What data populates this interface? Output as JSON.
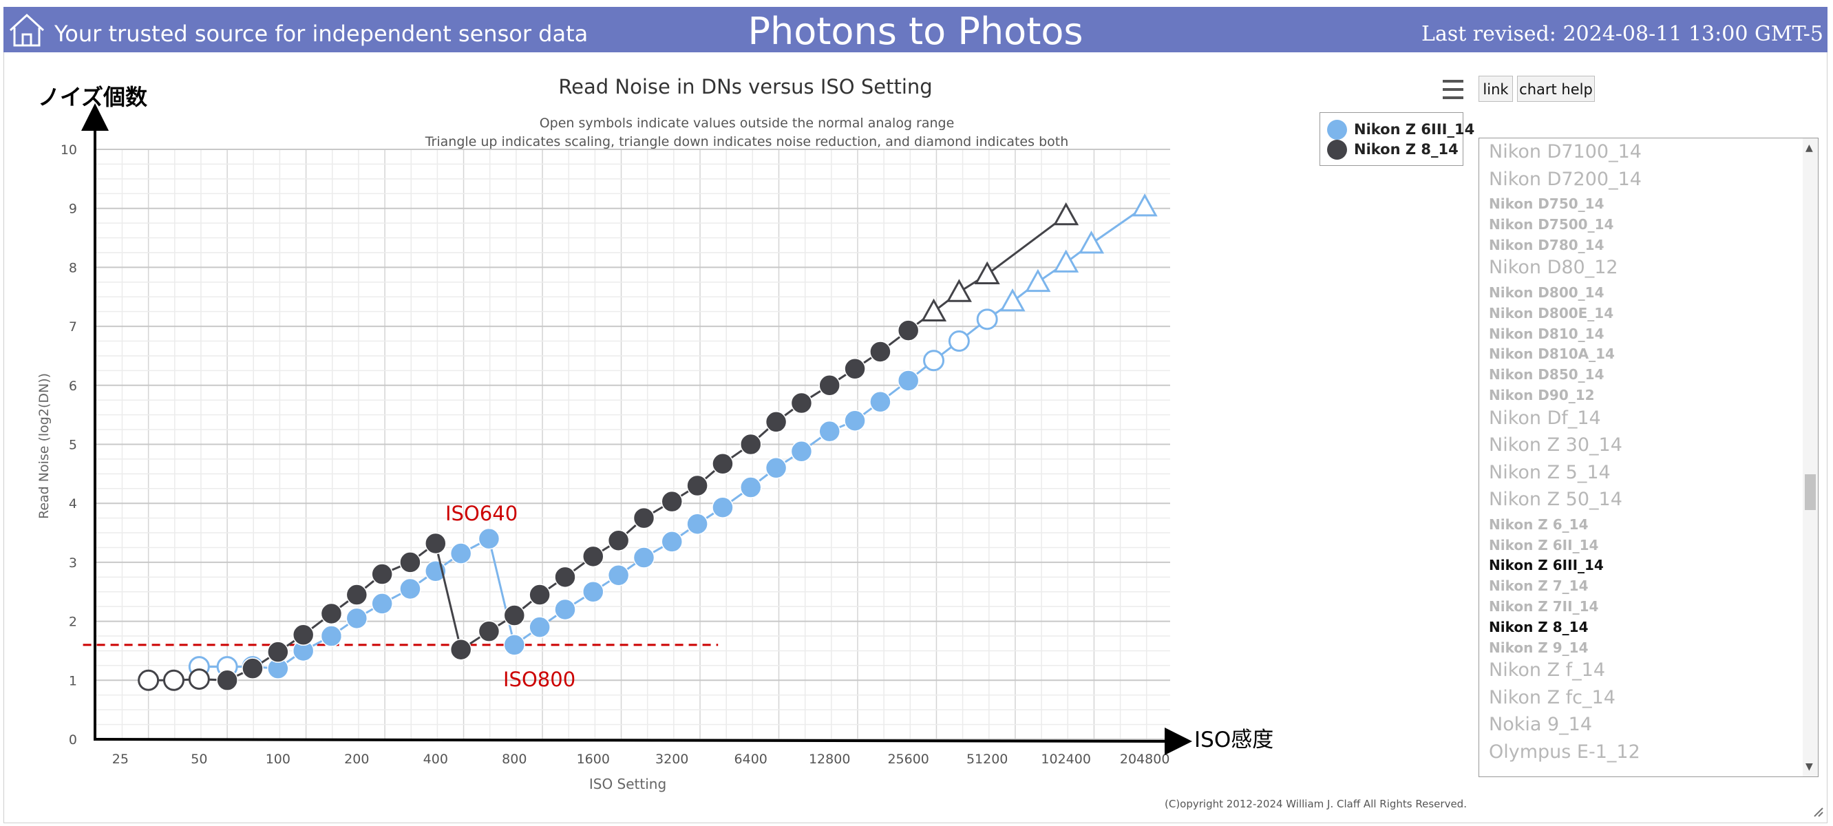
{
  "header": {
    "tagline": "Your trusted source for independent sensor data",
    "site_title": "Photons to Photos",
    "last_revised": "Last revised: 2024-08-11 13:00 GMT-5"
  },
  "toolbar": {
    "link_label": "link",
    "help_label": "chart help"
  },
  "colors": {
    "header_bg": "#6a78c1",
    "series_6iii": "#7cb5ec",
    "series_8": "#434348",
    "annotation": "#cc0000"
  },
  "annotations": {
    "y_axis_jp": "ノイズ個数",
    "x_axis_jp": "ISO感度",
    "iso640": "ISO640",
    "iso800": "ISO800",
    "threshold_y": 1.6,
    "threshold_x_range": [
      18,
      4800
    ]
  },
  "chart_data": {
    "type": "scatter",
    "title": "Read Noise in DNs versus ISO Setting",
    "subtitle": [
      "Open symbols indicate values outside the normal analog range",
      "Triangle up indicates scaling, triangle down indicates noise reduction, and diamond indicates both"
    ],
    "xlabel": "ISO Setting",
    "ylabel": "Read Noise (log2(DN))",
    "x_scale": "log2",
    "xlim": [
      20,
      256000
    ],
    "ylim": [
      0,
      10
    ],
    "x_ticks": [
      25,
      50,
      100,
      200,
      400,
      800,
      1600,
      3200,
      6400,
      12800,
      25600,
      51200,
      102400,
      204800
    ],
    "y_ticks": [
      0,
      1,
      2,
      3,
      4,
      5,
      6,
      7,
      8,
      9,
      10
    ],
    "grid": true,
    "legend": "top-right",
    "series": [
      {
        "name": "Nikon Z 6III_14",
        "color": "#7cb5ec",
        "points": [
          {
            "x": 50,
            "y": 1.23,
            "m": "open"
          },
          {
            "x": 64,
            "y": 1.23,
            "m": "open"
          },
          {
            "x": 80,
            "y": 1.23,
            "m": "open"
          },
          {
            "x": 100,
            "y": 1.2
          },
          {
            "x": 125,
            "y": 1.5
          },
          {
            "x": 160,
            "y": 1.75
          },
          {
            "x": 200,
            "y": 2.05
          },
          {
            "x": 250,
            "y": 2.3
          },
          {
            "x": 320,
            "y": 2.55
          },
          {
            "x": 400,
            "y": 2.85
          },
          {
            "x": 500,
            "y": 3.15
          },
          {
            "x": 640,
            "y": 3.4
          },
          {
            "x": 800,
            "y": 1.6
          },
          {
            "x": 1000,
            "y": 1.9
          },
          {
            "x": 1250,
            "y": 2.2
          },
          {
            "x": 1600,
            "y": 2.5
          },
          {
            "x": 2000,
            "y": 2.78
          },
          {
            "x": 2500,
            "y": 3.08
          },
          {
            "x": 3200,
            "y": 3.35
          },
          {
            "x": 4000,
            "y": 3.65
          },
          {
            "x": 5000,
            "y": 3.93
          },
          {
            "x": 6400,
            "y": 4.27
          },
          {
            "x": 8000,
            "y": 4.6
          },
          {
            "x": 10000,
            "y": 4.88
          },
          {
            "x": 12800,
            "y": 5.22
          },
          {
            "x": 16000,
            "y": 5.4
          },
          {
            "x": 20000,
            "y": 5.72
          },
          {
            "x": 25600,
            "y": 6.08
          },
          {
            "x": 32000,
            "y": 6.42,
            "m": "open"
          },
          {
            "x": 40000,
            "y": 6.75,
            "m": "open"
          },
          {
            "x": 51200,
            "y": 7.12,
            "m": "open"
          },
          {
            "x": 64000,
            "y": 7.42,
            "m": "tri-open"
          },
          {
            "x": 80000,
            "y": 7.75,
            "m": "tri-open"
          },
          {
            "x": 102400,
            "y": 8.08,
            "m": "tri-open"
          },
          {
            "x": 128000,
            "y": 8.4,
            "m": "tri-open"
          },
          {
            "x": 204800,
            "y": 9.03,
            "m": "tri-open"
          }
        ]
      },
      {
        "name": "Nikon Z 8_14",
        "color": "#434348",
        "points": [
          {
            "x": 32,
            "y": 1.0,
            "m": "open"
          },
          {
            "x": 40,
            "y": 1.0,
            "m": "open"
          },
          {
            "x": 50,
            "y": 1.02,
            "m": "open"
          },
          {
            "x": 64,
            "y": 1.0
          },
          {
            "x": 80,
            "y": 1.2
          },
          {
            "x": 100,
            "y": 1.48
          },
          {
            "x": 125,
            "y": 1.77
          },
          {
            "x": 160,
            "y": 2.13
          },
          {
            "x": 200,
            "y": 2.45
          },
          {
            "x": 250,
            "y": 2.8
          },
          {
            "x": 320,
            "y": 3.0
          },
          {
            "x": 400,
            "y": 3.32
          },
          {
            "x": 500,
            "y": 1.52
          },
          {
            "x": 640,
            "y": 1.83
          },
          {
            "x": 800,
            "y": 2.1
          },
          {
            "x": 1000,
            "y": 2.45
          },
          {
            "x": 1250,
            "y": 2.75
          },
          {
            "x": 1600,
            "y": 3.1
          },
          {
            "x": 2000,
            "y": 3.37
          },
          {
            "x": 2500,
            "y": 3.75
          },
          {
            "x": 3200,
            "y": 4.03
          },
          {
            "x": 4000,
            "y": 4.3
          },
          {
            "x": 5000,
            "y": 4.67
          },
          {
            "x": 6400,
            "y": 5.0
          },
          {
            "x": 8000,
            "y": 5.38
          },
          {
            "x": 10000,
            "y": 5.7
          },
          {
            "x": 12800,
            "y": 6.0
          },
          {
            "x": 16000,
            "y": 6.28
          },
          {
            "x": 20000,
            "y": 6.57
          },
          {
            "x": 25600,
            "y": 6.93
          },
          {
            "x": 32000,
            "y": 7.25,
            "m": "tri-open"
          },
          {
            "x": 40000,
            "y": 7.58,
            "m": "tri-open"
          },
          {
            "x": 51200,
            "y": 7.88,
            "m": "tri-open"
          },
          {
            "x": 102400,
            "y": 8.88,
            "m": "tri-open"
          }
        ]
      }
    ]
  },
  "camera_list": [
    {
      "label": "Nikon D7100_14",
      "size": "big",
      "selected": false
    },
    {
      "label": "Nikon D7200_14",
      "size": "big",
      "selected": false
    },
    {
      "label": "Nikon D750_14",
      "size": "small",
      "selected": false
    },
    {
      "label": "Nikon D7500_14",
      "size": "small",
      "selected": false
    },
    {
      "label": "Nikon D780_14",
      "size": "small",
      "selected": false
    },
    {
      "label": "Nikon D80_12",
      "size": "big",
      "selected": false
    },
    {
      "label": "Nikon D800_14",
      "size": "small",
      "selected": false
    },
    {
      "label": "Nikon D800E_14",
      "size": "small",
      "selected": false
    },
    {
      "label": "Nikon D810_14",
      "size": "small",
      "selected": false
    },
    {
      "label": "Nikon D810A_14",
      "size": "small",
      "selected": false
    },
    {
      "label": "Nikon D850_14",
      "size": "small",
      "selected": false
    },
    {
      "label": "Nikon D90_12",
      "size": "small",
      "selected": false
    },
    {
      "label": "Nikon Df_14",
      "size": "big",
      "selected": false
    },
    {
      "label": "Nikon Z 30_14",
      "size": "big",
      "selected": false
    },
    {
      "label": "Nikon Z 5_14",
      "size": "big",
      "selected": false
    },
    {
      "label": "Nikon Z 50_14",
      "size": "big",
      "selected": false
    },
    {
      "label": "Nikon Z 6_14",
      "size": "small",
      "selected": false
    },
    {
      "label": "Nikon Z 6II_14",
      "size": "small",
      "selected": false
    },
    {
      "label": "Nikon Z 6III_14",
      "size": "small",
      "selected": true
    },
    {
      "label": "Nikon Z 7_14",
      "size": "small",
      "selected": false
    },
    {
      "label": "Nikon Z 7II_14",
      "size": "small",
      "selected": false
    },
    {
      "label": "Nikon Z 8_14",
      "size": "small",
      "selected": true
    },
    {
      "label": "Nikon Z 9_14",
      "size": "small",
      "selected": false
    },
    {
      "label": "Nikon Z f_14",
      "size": "big",
      "selected": false
    },
    {
      "label": "Nikon Z fc_14",
      "size": "big",
      "selected": false
    },
    {
      "label": "Nokia 9_14",
      "size": "big",
      "selected": false
    },
    {
      "label": "Olympus E-1_12",
      "size": "big",
      "selected": false
    }
  ],
  "copyright": "(C)opyright 2012-2024 William J. Claff All Rights Reserved."
}
